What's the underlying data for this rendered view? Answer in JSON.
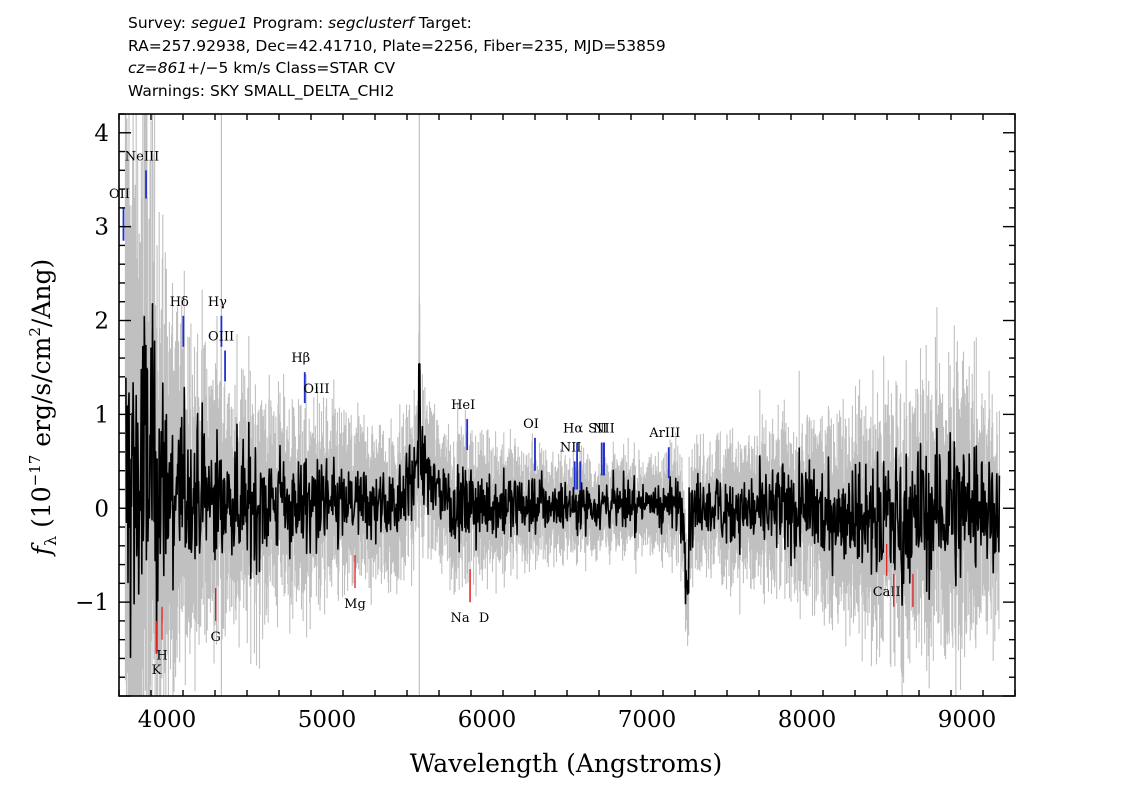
{
  "header": {
    "line1": {
      "survey_label": "Survey:",
      "survey": "segue1",
      "program_label": "Program:",
      "program": "segclusterf",
      "target_label": "Target:"
    },
    "line2": "RA=257.92938, Dec=42.41710, Plate=2256, Fiber=235, MJD=53859",
    "line3": {
      "cz": "cz",
      "eq": "=",
      "value": "861",
      "rest": "+/−5 km/s Class=STAR CV"
    },
    "line4": "Warnings: SKY SMALL_DELTA_CHI2"
  },
  "chart_data": {
    "type": "line",
    "xlabel": "Wavelength (Angstroms)",
    "ylabel": "fλ (10⁻¹⁷ erg/s/cm²/Ang)",
    "xlim": [
      3700,
      9300
    ],
    "ylim": [
      -2.0,
      4.2
    ],
    "x_ticks": [
      4000,
      5000,
      6000,
      7000,
      8000,
      9000
    ],
    "y_ticks": [
      -1,
      0,
      1,
      2,
      3,
      4
    ],
    "series": [
      {
        "role": "flux",
        "color": "#000000",
        "x": [
          3800,
          3850,
          3900,
          3950,
          4000,
          4100,
          4200,
          4300,
          4400,
          4600,
          4800,
          5000,
          5200,
          5400,
          5577,
          5800,
          6000,
          6200,
          6400,
          6600,
          6800,
          7000,
          7200,
          7250,
          7300,
          7500,
          7800,
          8000,
          8300,
          8500,
          8600,
          8700,
          8800,
          9000,
          9200
        ],
        "y": [
          0.6,
          0.9,
          1.0,
          0.7,
          0.45,
          0.4,
          0.32,
          0.28,
          0.22,
          0.16,
          0.14,
          0.1,
          0.07,
          0.06,
          1.1,
          0.05,
          0.06,
          0.08,
          0.1,
          0.1,
          0.12,
          0.13,
          0.1,
          -0.6,
          0.05,
          0.0,
          -0.05,
          -0.08,
          -0.12,
          -0.15,
          -0.3,
          -0.2,
          -0.05,
          0.1,
          0.0
        ]
      },
      {
        "role": "error",
        "color": "#c0c0c0",
        "x": [
          3800,
          3900,
          4000,
          4200,
          4400,
          4600,
          5000,
          5500,
          6000,
          6500,
          7000,
          7500,
          8000,
          8500,
          8800,
          9000,
          9200
        ],
        "y": [
          3.0,
          2.5,
          1.5,
          1.1,
          0.9,
          0.8,
          0.65,
          0.55,
          0.5,
          0.35,
          0.35,
          0.5,
          0.65,
          0.9,
          1.0,
          1.1,
          0.7
        ]
      }
    ],
    "emission_lines": [
      {
        "label": "OII",
        "x": 3728,
        "y_top": 3.2,
        "y_bot": 2.85
      },
      {
        "label": "NeIII",
        "x": 3869,
        "y_top": 3.6,
        "y_bot": 3.3
      },
      {
        "label": "Hδ",
        "x": 4102,
        "y_top": 2.05,
        "y_bot": 1.72
      },
      {
        "label": "Hγ",
        "x": 4340,
        "y_top": 2.05,
        "y_bot": 1.72
      },
      {
        "label": "OIII",
        "x": 4363,
        "y_top": 1.68,
        "y_bot": 1.35
      },
      {
        "label": "Hβ",
        "x": 4861,
        "y_top": 1.45,
        "y_bot": 1.12
      },
      {
        "label": "OIII",
        "x": 4959,
        "y_top": 1.12,
        "y_bot": 1.12
      },
      {
        "label": "",
        "x": 5007,
        "y_top": 1.12,
        "y_bot": 1.12
      },
      {
        "label": "HeI",
        "x": 5876,
        "y_top": 0.95,
        "y_bot": 0.62
      },
      {
        "label": "OI",
        "x": 6300,
        "y_top": 0.75,
        "y_bot": 0.4
      },
      {
        "label": "NII",
        "x": 6548,
        "y_top": 0.5,
        "y_bot": 0.2
      },
      {
        "label": "Hα",
        "x": 6563,
        "y_top": 0.7,
        "y_bot": 0.2
      },
      {
        "label": "",
        "x": 6583,
        "y_top": 0.5,
        "y_bot": 0.2
      },
      {
        "label": "SII",
        "x": 6717,
        "y_top": 0.7,
        "y_bot": 0.35
      },
      {
        "label": "",
        "x": 6731,
        "y_top": 0.7,
        "y_bot": 0.35
      },
      {
        "label": "NII",
        "x": 6731,
        "y_top": 0.7,
        "y_bot": 0.35
      },
      {
        "label": "ArIII",
        "x": 7136,
        "y_top": 0.65,
        "y_bot": 0.32
      }
    ],
    "absorption_lines": [
      {
        "label": "K",
        "x": 3934,
        "y_top": -1.2,
        "y_bot": -1.55
      },
      {
        "label": "H",
        "x": 3969,
        "y_top": -1.05,
        "y_bot": -1.4
      },
      {
        "label": "G",
        "x": 4304,
        "y_top": -0.85,
        "y_bot": -1.2
      },
      {
        "label": "Mg",
        "x": 5175,
        "y_top": -0.5,
        "y_bot": -0.85
      },
      {
        "label": "Na",
        "x": 5894,
        "y_top": -0.65,
        "y_bot": -1.0
      },
      {
        "label": "D",
        "x": 5894,
        "y_top": -0.65,
        "y_bot": -1.0
      },
      {
        "label": "CaII",
        "x": 8498,
        "y_top": -0.38,
        "y_bot": -0.72
      },
      {
        "label": "",
        "x": 8542,
        "y_top": -0.7,
        "y_bot": -1.05
      },
      {
        "label": "",
        "x": 8662,
        "y_top": -0.7,
        "y_bot": -1.05
      }
    ]
  }
}
